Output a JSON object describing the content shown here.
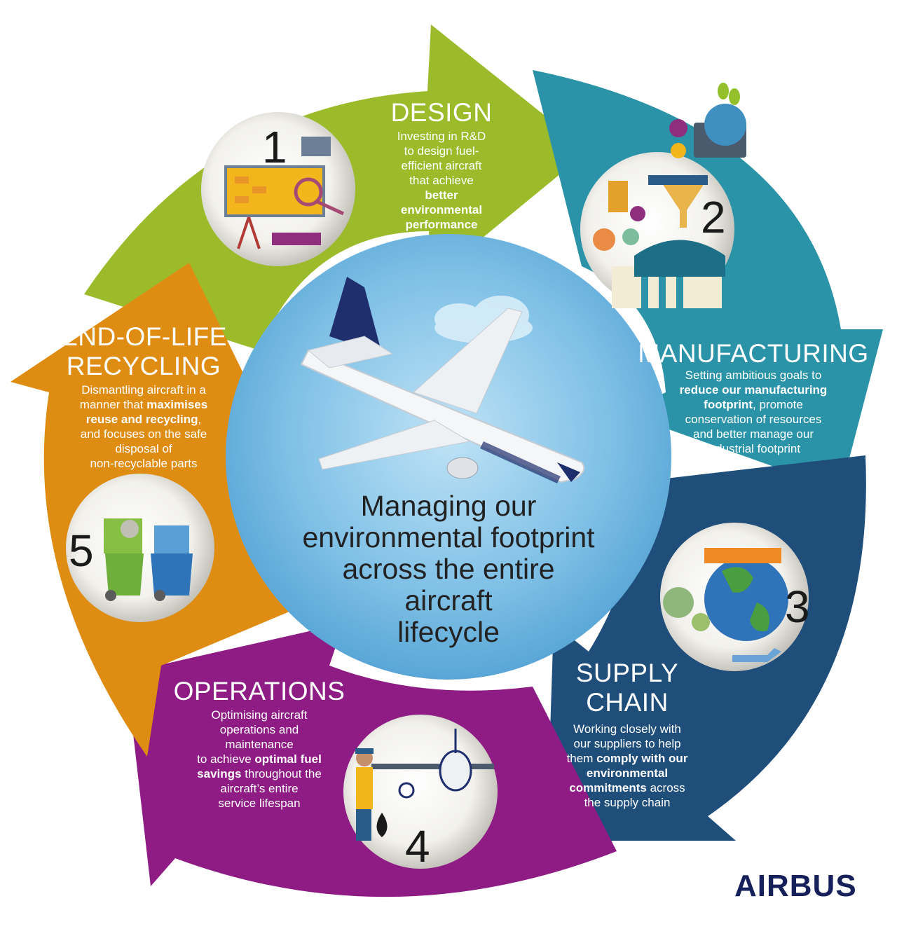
{
  "center": {
    "lines": [
      "Managing our",
      "environmental footprint",
      "across the entire",
      "aircraft",
      "lifecycle"
    ]
  },
  "stages": [
    {
      "number": "1",
      "title_lines": [
        "DESIGN"
      ],
      "desc_parts": [
        {
          "text": "Investing in R&D",
          "bold": false
        },
        {
          "text": "to design fuel-",
          "bold": false
        },
        {
          "text": "efficient aircraft",
          "bold": false
        },
        {
          "text": "that achieve",
          "bold": false
        },
        {
          "text": "better",
          "bold": true
        },
        {
          "text": "environmental",
          "bold": true
        },
        {
          "text": "performance",
          "bold": true
        }
      ],
      "color": "#9bbb2b",
      "icon": "design-research-icon"
    },
    {
      "number": "2",
      "title_lines": [
        "MANUFACTURING"
      ],
      "desc_parts": [
        {
          "text": "Setting ambitious goals to",
          "bold": false
        },
        {
          "text": "reduce our manufacturing",
          "bold": true
        },
        {
          "text": "footprint",
          "bold": true,
          "suffix": ", promote"
        },
        {
          "text": "conservation of resources",
          "bold": false
        },
        {
          "text": "and better manage our",
          "bold": false
        },
        {
          "text": "industrial footprint",
          "bold": false
        }
      ],
      "color": "#2a93a8",
      "icon": "factory-icon"
    },
    {
      "number": "3",
      "title_lines": [
        "SUPPLY",
        "CHAIN"
      ],
      "desc_parts": [
        {
          "text": "Working closely with",
          "bold": false
        },
        {
          "text": "our suppliers to help",
          "bold": false
        },
        {
          "text": "them ",
          "bold": false,
          "bold_tail": "comply with our"
        },
        {
          "text": "environmental",
          "bold": true
        },
        {
          "text": "commitments",
          "bold": true,
          "suffix": " across"
        },
        {
          "text": "the supply chain",
          "bold": false
        }
      ],
      "color": "#1f4e7a",
      "icon": "globe-supply-icon"
    },
    {
      "number": "4",
      "title_lines": [
        "OPERATIONS"
      ],
      "desc_parts": [
        {
          "text": "Optimising aircraft",
          "bold": false
        },
        {
          "text": "operations and",
          "bold": false
        },
        {
          "text": "maintenance",
          "bold": false
        },
        {
          "text": "to achieve ",
          "bold": false,
          "bold_tail": "optimal fuel"
        },
        {
          "text": "savings",
          "bold": true,
          "suffix": " throughout the"
        },
        {
          "text": "aircraft’s entire",
          "bold": false
        },
        {
          "text": "service lifespan",
          "bold": false
        }
      ],
      "color": "#8e1c84",
      "icon": "refuel-aircraft-icon"
    },
    {
      "number": "5",
      "title_lines": [
        "END-OF-LIFE",
        "RECYCLING"
      ],
      "desc_parts": [
        {
          "text": "Dismantling aircraft in a",
          "bold": false
        },
        {
          "text": "manner that ",
          "bold": false,
          "bold_tail": "maximises"
        },
        {
          "text": "reuse and recycling",
          "bold": true,
          "suffix": ","
        },
        {
          "text": "and focuses on the safe",
          "bold": false
        },
        {
          "text": "disposal of",
          "bold": false
        },
        {
          "text": "non-recyclable parts",
          "bold": false
        }
      ],
      "color": "#df8c13",
      "icon": "recycling-bins-icon"
    }
  ],
  "logo": "AIRBUS",
  "colors": {
    "center_sky": "#6fb6e0",
    "logo": "#16215c"
  }
}
